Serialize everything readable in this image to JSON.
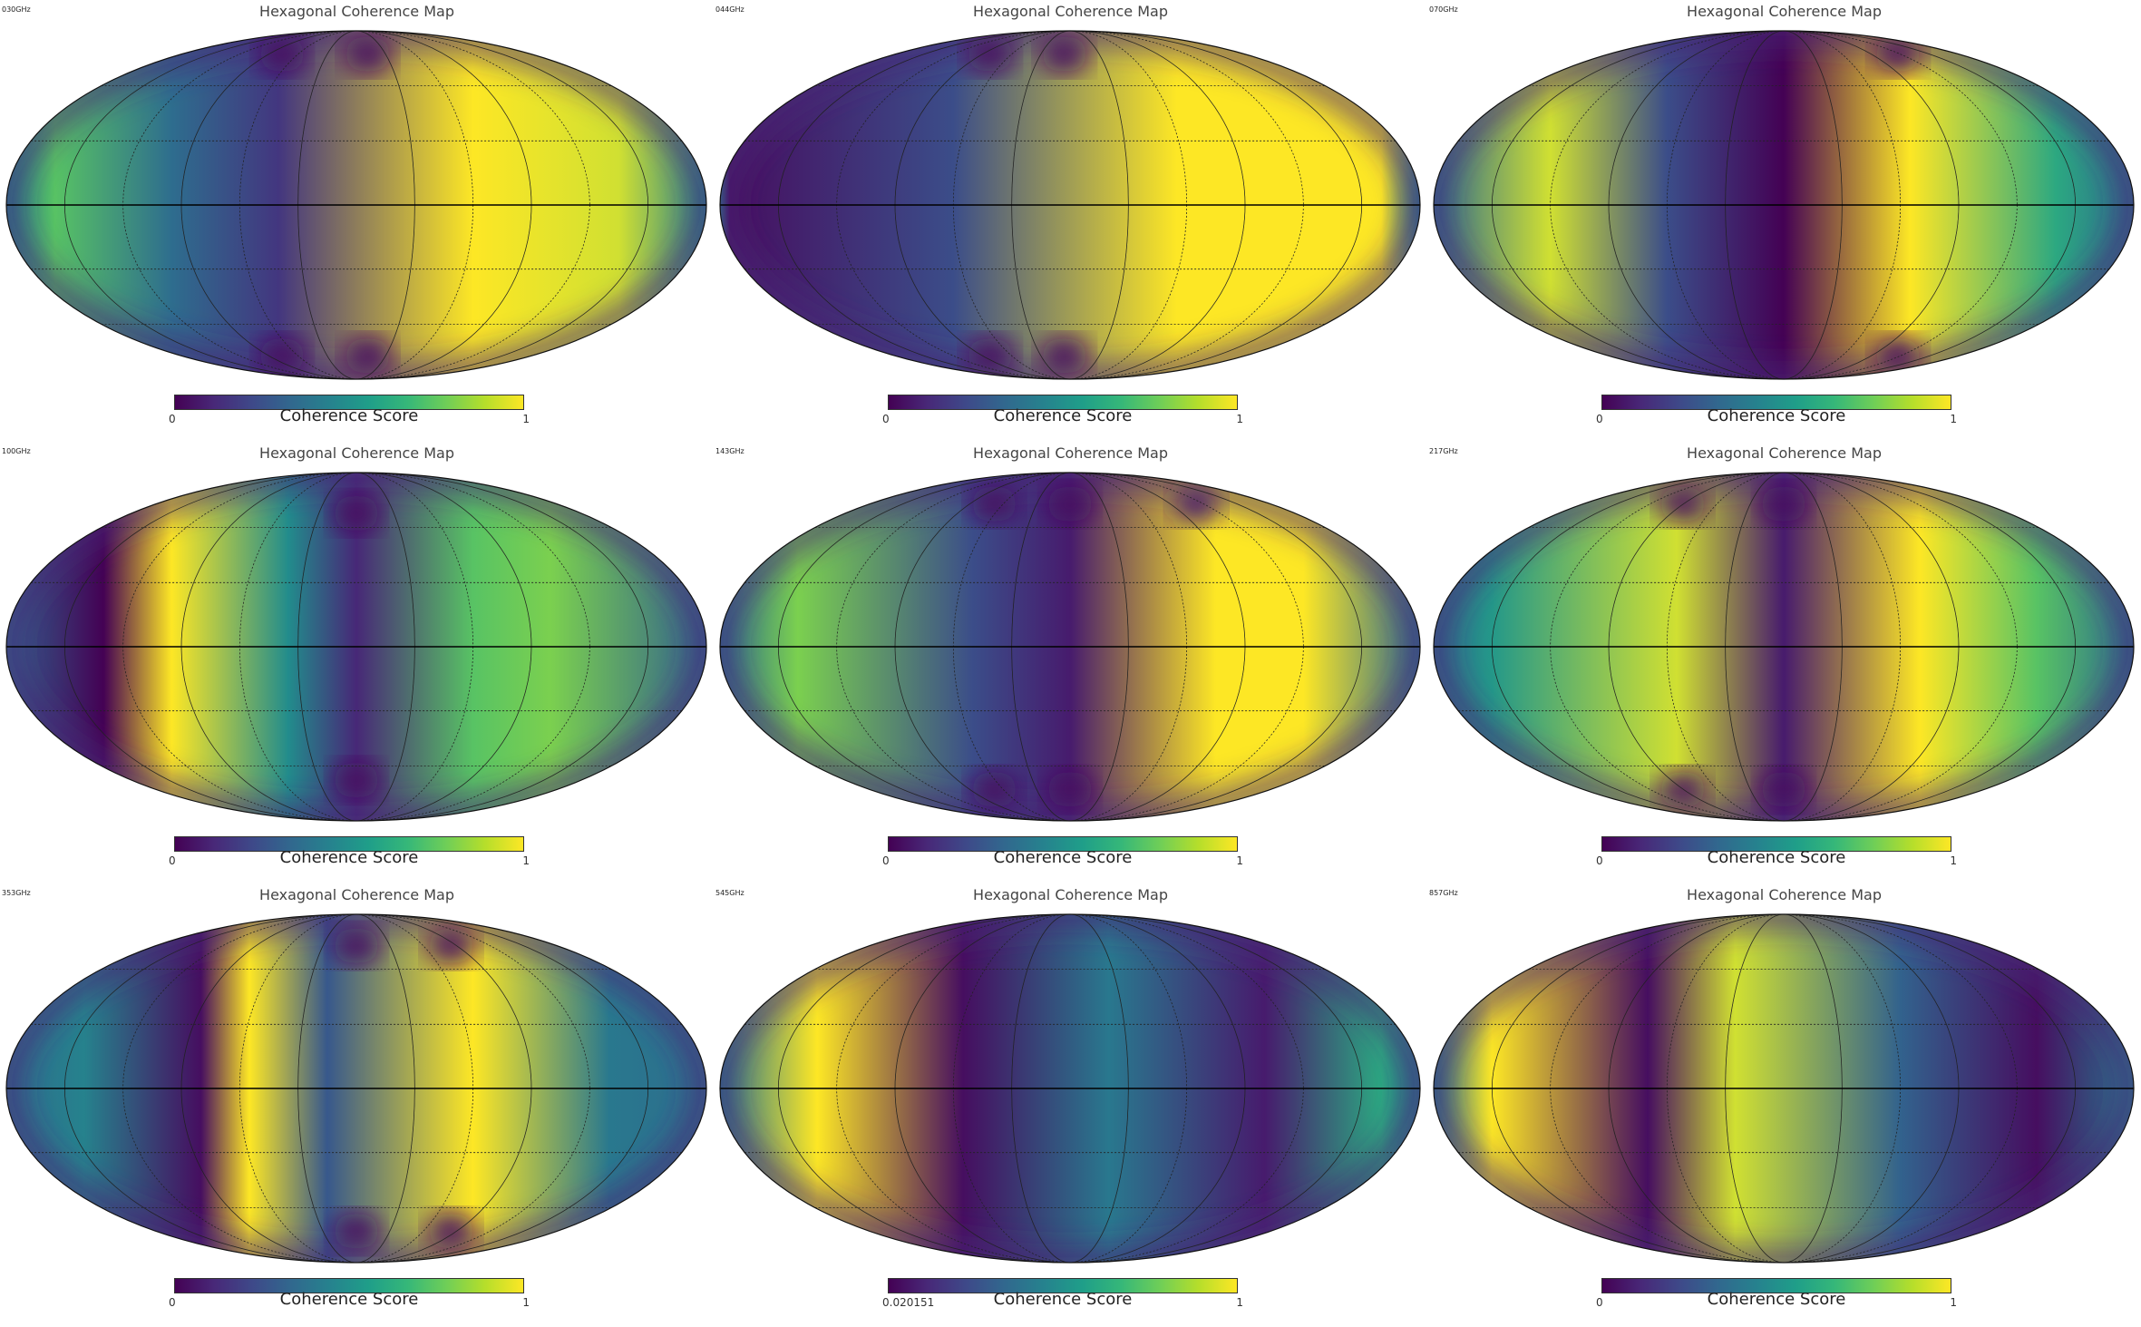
{
  "figure": {
    "panels": [
      {
        "corner_label": "030GHz",
        "title": "Hexagonal Coherence Map",
        "colorbar": {
          "label": "Coherence Score",
          "min_label": "0",
          "max_label": "1"
        }
      },
      {
        "corner_label": "044GHz",
        "title": "Hexagonal Coherence Map",
        "colorbar": {
          "label": "Coherence Score",
          "min_label": "0",
          "max_label": "1"
        }
      },
      {
        "corner_label": "070GHz",
        "title": "Hexagonal Coherence Map",
        "colorbar": {
          "label": "Coherence Score",
          "min_label": "0",
          "max_label": "1"
        }
      },
      {
        "corner_label": "100GHz",
        "title": "Hexagonal Coherence Map",
        "colorbar": {
          "label": "Coherence Score",
          "min_label": "0",
          "max_label": "1"
        }
      },
      {
        "corner_label": "143GHz",
        "title": "Hexagonal Coherence Map",
        "colorbar": {
          "label": "Coherence Score",
          "min_label": "0",
          "max_label": "1"
        }
      },
      {
        "corner_label": "217GHz",
        "title": "Hexagonal Coherence Map",
        "colorbar": {
          "label": "Coherence Score",
          "min_label": "0",
          "max_label": "1"
        }
      },
      {
        "corner_label": "353GHz",
        "title": "Hexagonal Coherence Map",
        "colorbar": {
          "label": "Coherence Score",
          "min_label": "0",
          "max_label": "1"
        }
      },
      {
        "corner_label": "545GHz",
        "title": "Hexagonal Coherence Map",
        "colorbar": {
          "label": "Coherence Score",
          "min_label": "0.020151",
          "max_label": "1"
        }
      },
      {
        "corner_label": "857GHz",
        "title": "Hexagonal Coherence Map",
        "colorbar": {
          "label": "Coherence Score",
          "min_label": "0",
          "max_label": "1"
        }
      }
    ]
  },
  "chart_data": {
    "type": "heatmap",
    "projection": "mollweide",
    "colormap": "viridis",
    "value_range": [
      0,
      1
    ],
    "grid": true,
    "panels": [
      {
        "title": "Hexagonal Coherence Map",
        "colorbar_range": [
          0,
          1
        ],
        "bands": [
          {
            "lon": -155,
            "value": 0.8
          },
          {
            "lon": -95,
            "value": 0.45
          },
          {
            "lon": -40,
            "value": 0.2
          },
          {
            "lon": 60,
            "value": 1.0
          },
          {
            "lon": 135,
            "value": 0.95
          }
        ],
        "base": 0.55,
        "spots": [
          {
            "lon": -65,
            "lat": 60,
            "value": 0.05
          },
          {
            "lon": -65,
            "lat": -60,
            "value": 0.05
          },
          {
            "lon": 10,
            "lat": 60,
            "value": 0.05
          },
          {
            "lon": 10,
            "lat": -60,
            "value": 0.05
          }
        ]
      },
      {
        "title": "Hexagonal Coherence Map",
        "colorbar_range": [
          0,
          1
        ],
        "bands": [
          {
            "lon": -175,
            "value": 0.05
          },
          {
            "lon": -60,
            "value": 0.3
          },
          {
            "lon": 55,
            "value": 1.0
          },
          {
            "lon": 160,
            "value": 1.0
          }
        ],
        "base": 0.5,
        "spots": [
          {
            "lon": -70,
            "lat": 60,
            "value": 0.05
          },
          {
            "lon": -70,
            "lat": -60,
            "value": 0.05
          },
          {
            "lon": -5,
            "lat": 60,
            "value": 0.05
          },
          {
            "lon": -5,
            "lat": -60,
            "value": 0.05
          }
        ]
      },
      {
        "title": "Hexagonal Coherence Map",
        "colorbar_range": [
          0,
          1
        ],
        "bands": [
          {
            "lon": -120,
            "value": 0.95
          },
          {
            "lon": -60,
            "value": 0.3
          },
          {
            "lon": 0,
            "value": 0.0
          },
          {
            "lon": 65,
            "value": 1.0
          },
          {
            "lon": 140,
            "value": 0.7
          }
        ],
        "base": 0.45,
        "spots": [
          {
            "lon": 100,
            "lat": 60,
            "value": 0.05
          },
          {
            "lon": 100,
            "lat": -60,
            "value": 0.05
          }
        ]
      },
      {
        "title": "Hexagonal Coherence Map",
        "colorbar_range": [
          0,
          1
        ],
        "bands": [
          {
            "lon": -130,
            "value": 0.0
          },
          {
            "lon": -95,
            "value": 1.0
          },
          {
            "lon": -35,
            "value": 0.6
          },
          {
            "lon": 0,
            "value": 0.15
          },
          {
            "lon": 60,
            "value": 0.8
          },
          {
            "lon": 100,
            "value": 0.85
          }
        ],
        "base": 0.4,
        "spots": [
          {
            "lon": 0,
            "lat": 50,
            "value": 0.05
          },
          {
            "lon": 0,
            "lat": -50,
            "value": 0.05
          }
        ]
      },
      {
        "title": "Hexagonal Coherence Map",
        "colorbar_range": [
          0,
          1
        ],
        "bands": [
          {
            "lon": -140,
            "value": 0.85
          },
          {
            "lon": -50,
            "value": 0.3
          },
          {
            "lon": 0,
            "value": 0.1
          },
          {
            "lon": 75,
            "value": 1.0
          },
          {
            "lon": 120,
            "value": 1.0
          }
        ],
        "base": 0.45,
        "spots": [
          {
            "lon": -60,
            "lat": 55,
            "value": 0.05
          },
          {
            "lon": -60,
            "lat": -55,
            "value": 0.05
          },
          {
            "lon": 0,
            "lat": 55,
            "value": 0.05
          },
          {
            "lon": 0,
            "lat": -55,
            "value": 0.05
          },
          {
            "lon": 100,
            "lat": 55,
            "value": 0.1
          }
        ]
      },
      {
        "title": "Hexagonal Coherence Map",
        "colorbar_range": [
          0,
          1
        ],
        "bands": [
          {
            "lon": -150,
            "value": 0.65
          },
          {
            "lon": -55,
            "value": 0.95
          },
          {
            "lon": 0,
            "value": 0.1
          },
          {
            "lon": 70,
            "value": 1.0
          },
          {
            "lon": 130,
            "value": 0.8
          }
        ],
        "base": 0.45,
        "spots": [
          {
            "lon": -80,
            "lat": 55,
            "value": 0.05
          },
          {
            "lon": -80,
            "lat": -55,
            "value": 0.05
          },
          {
            "lon": 0,
            "lat": 55,
            "value": 0.05
          },
          {
            "lon": 0,
            "lat": -55,
            "value": 0.05
          }
        ]
      },
      {
        "title": "Hexagonal Coherence Map",
        "colorbar_range": [
          0,
          1
        ],
        "bands": [
          {
            "lon": -140,
            "value": 0.55
          },
          {
            "lon": -80,
            "value": 0.05
          },
          {
            "lon": -55,
            "value": 1.0
          },
          {
            "lon": -15,
            "value": 0.35
          },
          {
            "lon": 60,
            "value": 1.0
          },
          {
            "lon": 130,
            "value": 0.5
          }
        ],
        "base": 0.45,
        "spots": [
          {
            "lon": 0,
            "lat": 55,
            "value": 0.05
          },
          {
            "lon": 0,
            "lat": -55,
            "value": 0.05
          },
          {
            "lon": 75,
            "lat": 55,
            "value": 0.05
          },
          {
            "lon": 75,
            "lat": -55,
            "value": 0.05
          }
        ]
      },
      {
        "title": "Hexagonal Coherence Map",
        "colorbar_range": [
          0.020151,
          1
        ],
        "bands": [
          {
            "lon": -130,
            "value": 1.0
          },
          {
            "lon": -55,
            "value": 0.05
          },
          {
            "lon": 20,
            "value": 0.5
          },
          {
            "lon": 100,
            "value": 0.1
          },
          {
            "lon": 160,
            "value": 0.7
          }
        ],
        "base": 0.5,
        "spots": []
      },
      {
        "title": "Hexagonal Coherence Map",
        "colorbar_range": [
          0,
          1
        ],
        "bands": [
          {
            "lon": -150,
            "value": 1.0
          },
          {
            "lon": -70,
            "value": 0.05
          },
          {
            "lon": -25,
            "value": 0.95
          },
          {
            "lon": 60,
            "value": 0.4
          },
          {
            "lon": 130,
            "value": 0.05
          }
        ],
        "base": 0.5,
        "spots": []
      }
    ]
  }
}
